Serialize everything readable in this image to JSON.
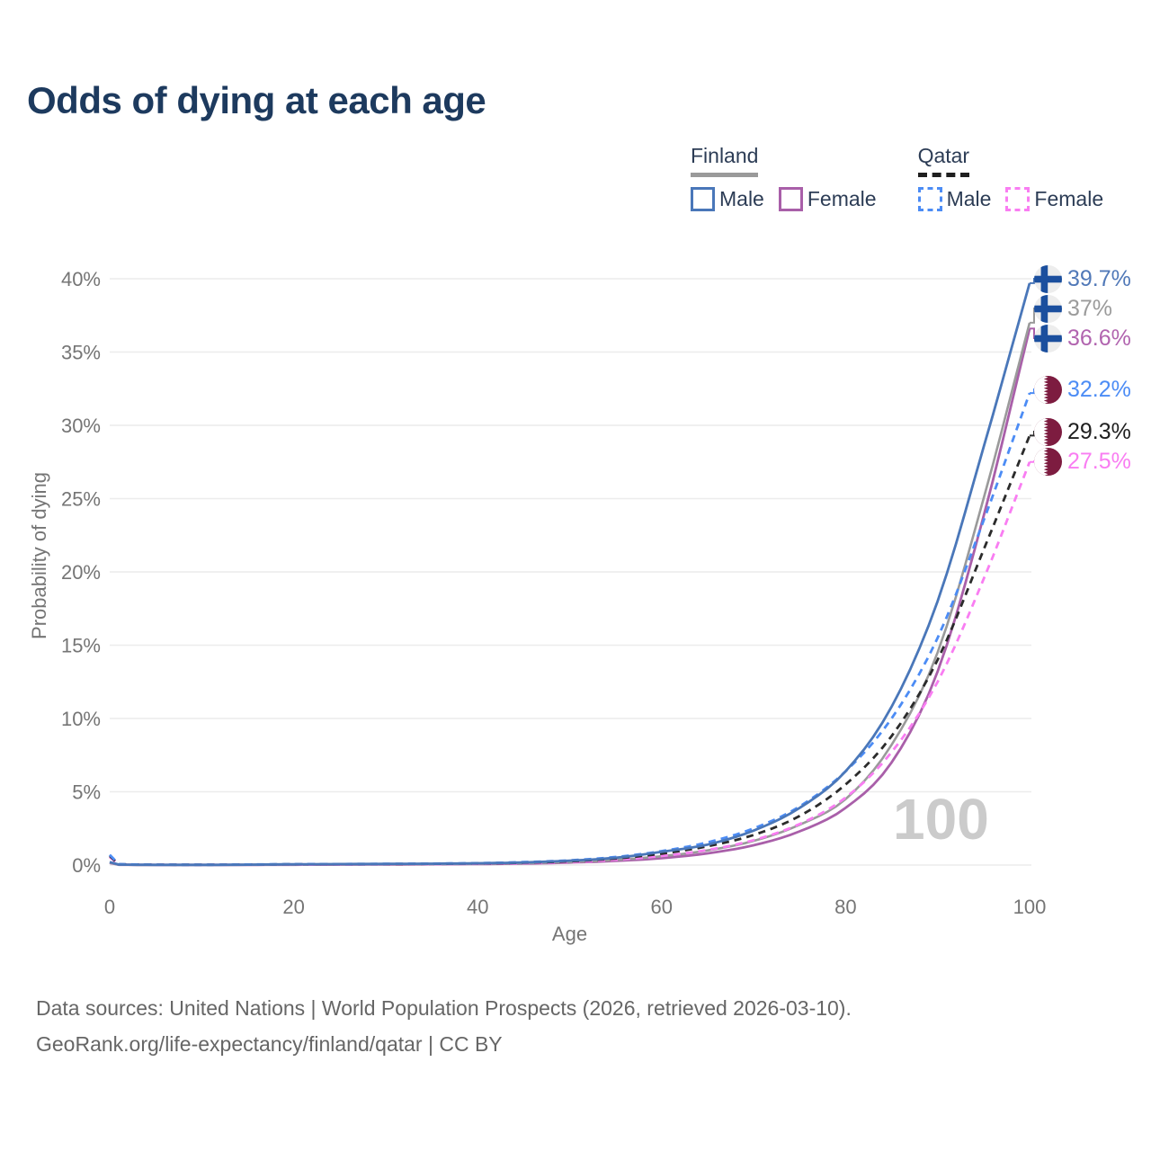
{
  "chart_data": {
    "type": "line",
    "title": "Odds of dying at each age",
    "xlabel": "Age",
    "ylabel": "Probability of dying",
    "xlim": [
      0,
      100
    ],
    "ylim": [
      0,
      40
    ],
    "grid": true,
    "legend_position": "top-right",
    "watermark": "100",
    "xticks": [
      0,
      20,
      40,
      60,
      80,
      100
    ],
    "yticks": [
      {
        "value": 0,
        "label": "0%"
      },
      {
        "value": 5,
        "label": "5%"
      },
      {
        "value": 10,
        "label": "10%"
      },
      {
        "value": 15,
        "label": "15%"
      },
      {
        "value": 20,
        "label": "20%"
      },
      {
        "value": 25,
        "label": "25%"
      },
      {
        "value": 30,
        "label": "30%"
      },
      {
        "value": 35,
        "label": "35%"
      },
      {
        "value": 40,
        "label": "40%"
      }
    ],
    "x": [
      0,
      1,
      10,
      20,
      30,
      40,
      45,
      50,
      55,
      60,
      65,
      70,
      75,
      80,
      85,
      90,
      95,
      100
    ],
    "series": [
      {
        "name": "Finland Male",
        "country": "Finland",
        "sex": "Male",
        "style": "solid",
        "color": "#4a77b9",
        "label_color": "#5179b8",
        "end_label": "39.7%",
        "values": [
          0.2,
          0.03,
          0.01,
          0.05,
          0.08,
          0.12,
          0.18,
          0.3,
          0.5,
          0.9,
          1.4,
          2.35,
          3.9,
          6.4,
          10.8,
          18.0,
          28.5,
          39.7
        ]
      },
      {
        "name": "Finland",
        "country": "Finland",
        "sex": "Both",
        "style": "solid",
        "color": "#9a9a9a",
        "label_color": "#9b9b9b",
        "end_label": "37%",
        "values": [
          0.17,
          0.02,
          0.01,
          0.035,
          0.06,
          0.09,
          0.13,
          0.21,
          0.35,
          0.6,
          1.0,
          1.65,
          2.75,
          4.5,
          8.2,
          14.5,
          25.0,
          37.0
        ]
      },
      {
        "name": "Finland Female",
        "country": "Finland",
        "sex": "Female",
        "style": "solid",
        "color": "#a95fa9",
        "label_color": "#b164af",
        "end_label": "36.6%",
        "values": [
          0.15,
          0.02,
          0.01,
          0.02,
          0.04,
          0.07,
          0.1,
          0.17,
          0.28,
          0.47,
          0.8,
          1.35,
          2.3,
          3.9,
          7.0,
          13.2,
          23.8,
          36.6
        ]
      },
      {
        "name": "Qatar Male",
        "country": "Qatar",
        "sex": "Male",
        "style": "dashed",
        "color": "#4c8cf5",
        "label_color": "#4c8cf5",
        "end_label": "32.2%",
        "values": [
          0.7,
          0.06,
          0.02,
          0.06,
          0.08,
          0.13,
          0.2,
          0.32,
          0.55,
          0.95,
          1.55,
          2.5,
          4.0,
          6.4,
          10.0,
          15.5,
          23.5,
          32.2
        ]
      },
      {
        "name": "Qatar",
        "country": "Qatar",
        "sex": "Both",
        "style": "dashed",
        "color": "#2b2b2b",
        "label_color": "#1f1f1f",
        "end_label": "29.3%",
        "values": [
          0.62,
          0.05,
          0.02,
          0.05,
          0.07,
          0.11,
          0.16,
          0.26,
          0.45,
          0.78,
          1.28,
          2.05,
          3.35,
          5.5,
          8.8,
          14.0,
          21.5,
          29.3
        ]
      },
      {
        "name": "Qatar Female",
        "country": "Qatar",
        "sex": "Female",
        "style": "dashed",
        "color": "#f97df2",
        "label_color": "#f97df2",
        "end_label": "27.5%",
        "values": [
          0.55,
          0.045,
          0.015,
          0.04,
          0.06,
          0.09,
          0.13,
          0.21,
          0.36,
          0.62,
          1.03,
          1.7,
          2.8,
          4.6,
          7.7,
          12.5,
          19.5,
          27.5
        ]
      }
    ]
  },
  "legend": {
    "finland": {
      "label": "Finland",
      "male": "Male",
      "female": "Female"
    },
    "qatar": {
      "label": "Qatar",
      "male": "Male",
      "female": "Female"
    }
  },
  "colors": {
    "title": "#1d3a5e",
    "axis_text": "#757575",
    "grid": "#ececec",
    "watermark": "#cbcbcb",
    "finland_flag_blue": "#1b4f9e",
    "finland_flag_bg": "#ededed",
    "qatar_flag_maroon": "#7d1c40"
  },
  "footer": {
    "line1": "Data sources: United Nations | World Population Prospects (2026, retrieved 2026-03-10).",
    "line2": "GeoRank.org/life-expectancy/finland/qatar | CC BY"
  }
}
